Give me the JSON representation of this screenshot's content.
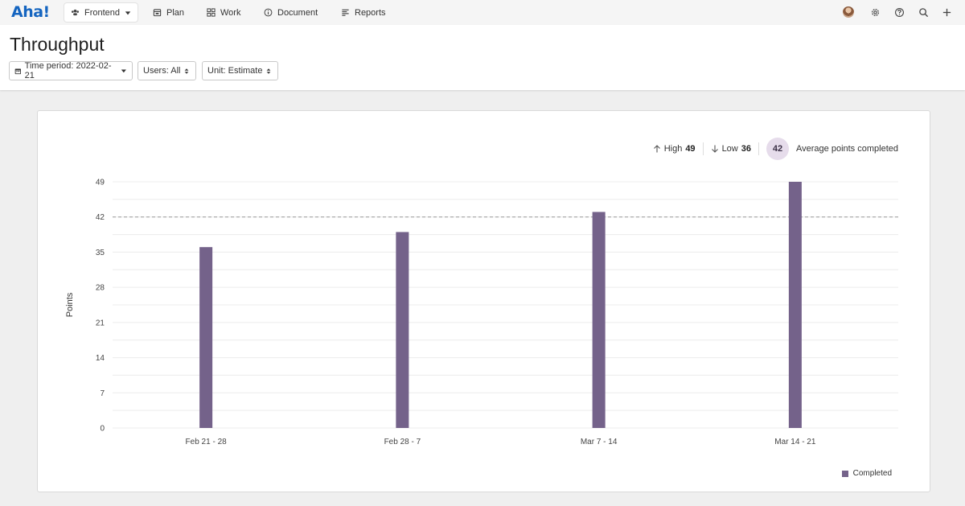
{
  "nav": {
    "logo": "Aha!",
    "workspace": "Frontend",
    "items": [
      {
        "label": "Plan",
        "icon": "calendar-icon"
      },
      {
        "label": "Work",
        "icon": "grid-icon"
      },
      {
        "label": "Document",
        "icon": "info-icon"
      },
      {
        "label": "Reports",
        "icon": "reports-icon"
      }
    ],
    "right_icons": [
      "avatar",
      "gear-icon",
      "help-icon",
      "search-icon",
      "plus-icon"
    ]
  },
  "header": {
    "title": "Throughput",
    "filters": {
      "time_period": "Time period: 2022-02-21",
      "users": "Users: All",
      "unit": "Unit: Estimate"
    }
  },
  "stats": {
    "high_label": "High",
    "high_value": "49",
    "low_label": "Low",
    "low_value": "36",
    "avg_value": "42",
    "avg_label": "Average points completed"
  },
  "chart_data": {
    "type": "bar",
    "categories": [
      "Feb 21 - 28",
      "Feb 28 - 7",
      "Mar 7 - 14",
      "Mar 14 - 21"
    ],
    "series": [
      {
        "name": "Completed",
        "values": [
          36,
          39,
          43,
          49
        ],
        "color": "#74628a"
      }
    ],
    "ylabel": "Points",
    "ylim": [
      0,
      49
    ],
    "yticks": [
      0,
      7,
      14,
      21,
      28,
      35,
      42,
      49
    ],
    "average_line": 42,
    "grid": true,
    "legend": "bottom-right"
  }
}
